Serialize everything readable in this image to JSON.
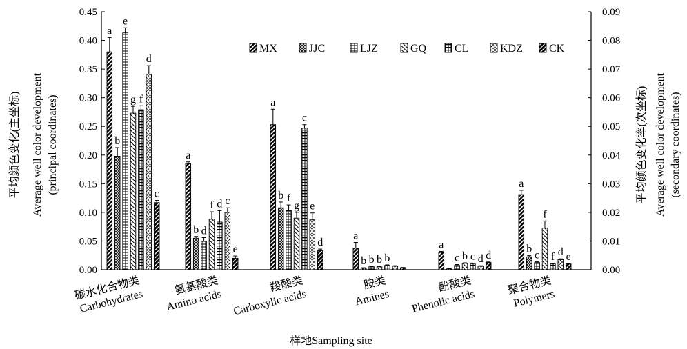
{
  "chart_data": {
    "type": "bar",
    "xlabel": "样地Sampling site",
    "ylabel_left": [
      "平均颜色变化(主坐标)",
      "Average well color development",
      "(principal coordinates)"
    ],
    "ylabel_right": [
      "平均颜色变化率(次坐标)",
      "Average well color development",
      "(secondary coordinates)"
    ],
    "ylim_left": [
      0,
      0.45
    ],
    "ylim_right": [
      0,
      0.09
    ],
    "yticks_left": [
      "0.00",
      "0.05",
      "0.10",
      "0.15",
      "0.20",
      "0.25",
      "0.30",
      "0.35",
      "0.40",
      "0.45"
    ],
    "yticks_right": [
      "0.00",
      "0.01",
      "0.02",
      "0.03",
      "0.04",
      "0.05",
      "0.06",
      "0.07",
      "0.08",
      "0.09"
    ],
    "categories": [
      {
        "zh": "碳水化合物类",
        "en": "Carbohydrates",
        "axis": "left"
      },
      {
        "zh": "氨基酸类",
        "en": "Amino acids",
        "axis": "left"
      },
      {
        "zh": "羧酸类",
        "en": "Carboxylic acids",
        "axis": "left"
      },
      {
        "zh": "胺类",
        "en": "Amines",
        "axis": "right"
      },
      {
        "zh": "酚酸类",
        "en": "Phenolic acids",
        "axis": "right"
      },
      {
        "zh": "聚合物类",
        "en": "Polymers",
        "axis": "right"
      }
    ],
    "legend_position": "top-right",
    "series": [
      {
        "name": "MX",
        "values": [
          0.38,
          0.185,
          0.253,
          0.0075,
          0.006,
          0.0262
        ],
        "errors": [
          0.025,
          0.003,
          0.027,
          0.002,
          0.0004,
          0.0015
        ],
        "letters": [
          "a",
          "a",
          "a",
          "a",
          "a",
          "a"
        ]
      },
      {
        "name": "JJC",
        "values": [
          0.198,
          0.055,
          0.108,
          0.0005,
          0.0003,
          0.0045
        ],
        "errors": [
          0.015,
          0.003,
          0.01,
          0.0002,
          0.0002,
          0.0004
        ],
        "letters": [
          "b",
          "b",
          "b",
          "b",
          "",
          "b"
        ]
      },
      {
        "name": "LJZ",
        "values": [
          0.413,
          0.05,
          0.103,
          0.001,
          0.0015,
          0.0025
        ],
        "errors": [
          0.009,
          0.006,
          0.01,
          0.0002,
          0.0003,
          0.0003
        ],
        "letters": [
          "e",
          "d",
          "f",
          "b",
          "c",
          "c"
        ]
      },
      {
        "name": "GQ",
        "values": [
          0.273,
          0.088,
          0.09,
          0.001,
          0.0022,
          0.0145
        ],
        "errors": [
          0.012,
          0.013,
          0.01,
          0.0002,
          0.0002,
          0.0025
        ],
        "letters": [
          "g",
          "f",
          "g",
          "b",
          "b",
          "f"
        ]
      },
      {
        "name": "CL",
        "values": [
          0.279,
          0.083,
          0.247,
          0.0015,
          0.002,
          0.002
        ],
        "errors": [
          0.007,
          0.02,
          0.006,
          0.0002,
          0.0003,
          0.0002
        ],
        "letters": [
          "f",
          "d",
          "c",
          "b",
          "c",
          "f"
        ]
      },
      {
        "name": "KDZ",
        "values": [
          0.341,
          0.1,
          0.087,
          0.0012,
          0.0012,
          0.0035
        ],
        "errors": [
          0.015,
          0.008,
          0.012,
          0.0002,
          0.0002,
          0.0003
        ],
        "letters": [
          "d",
          "c",
          "e",
          "",
          "d",
          "d"
        ]
      },
      {
        "name": "CK",
        "values": [
          0.117,
          0.02,
          0.033,
          0.0007,
          0.0025,
          0.002
        ],
        "errors": [
          0.004,
          0.004,
          0.003,
          0.0001,
          0.0002,
          0.0002
        ],
        "letters": [
          "c",
          "e",
          "d",
          "",
          "d",
          "e"
        ]
      }
    ]
  }
}
